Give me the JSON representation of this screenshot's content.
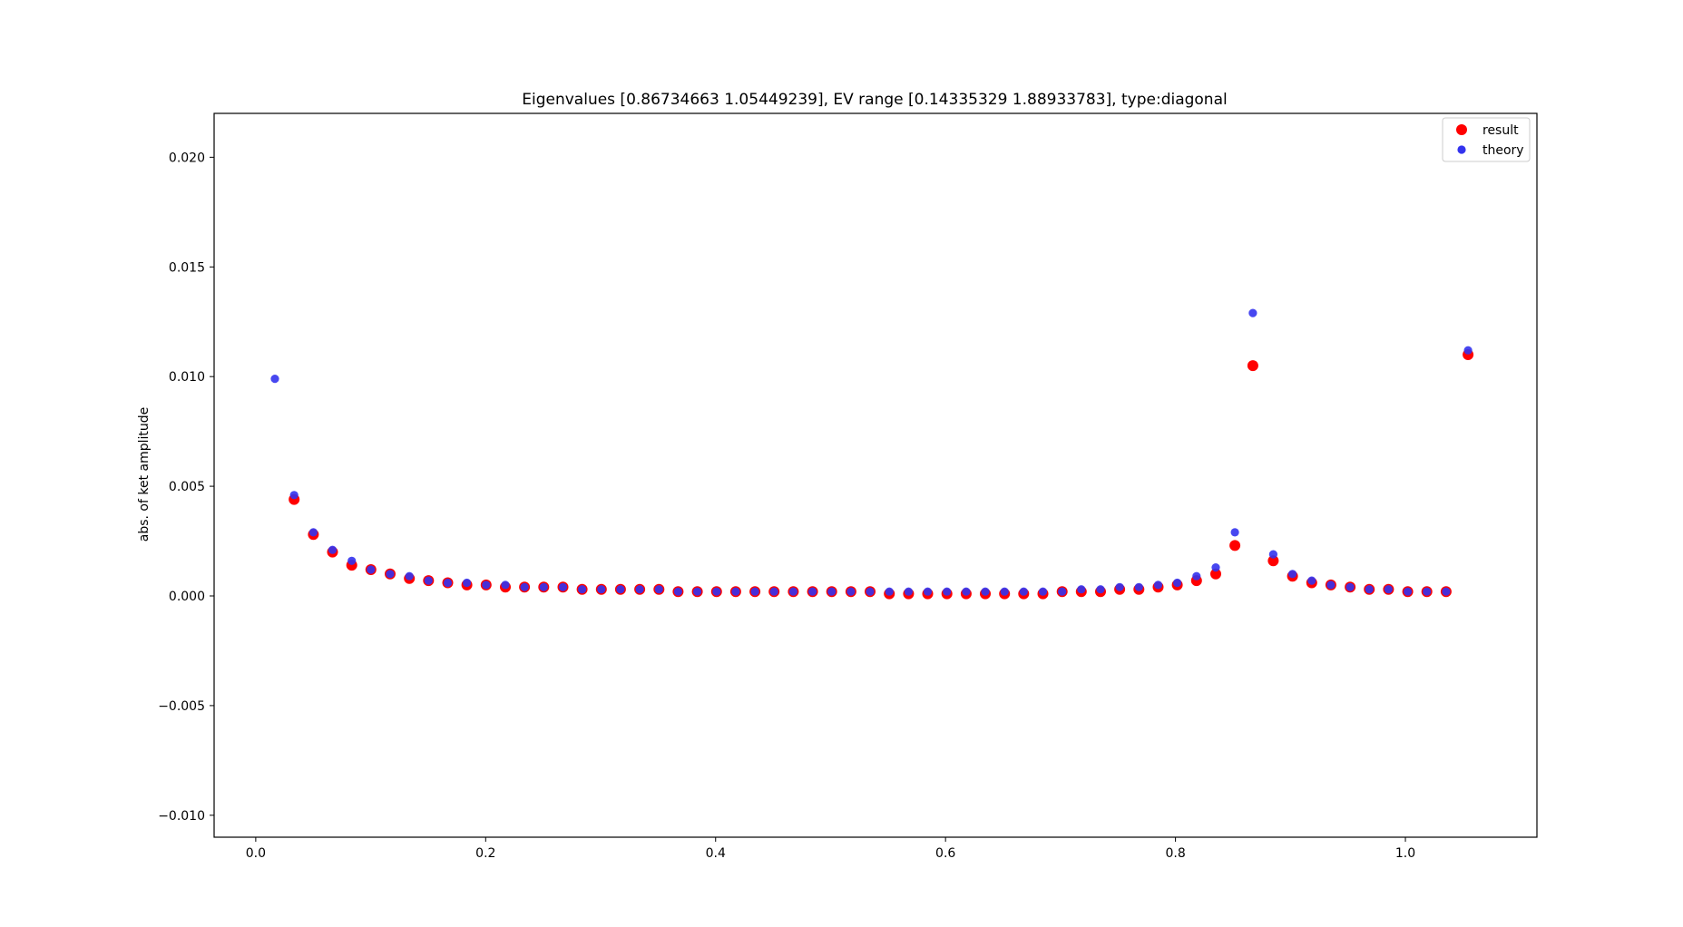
{
  "chart_data": {
    "type": "scatter",
    "title": "Eigenvalues [0.86734663 1.05449239], EV range [0.14335329 1.88933783], type:diagonal",
    "xlabel": "",
    "ylabel": "abs. of ket amplitude",
    "xlim": [
      -0.0362,
      1.1144
    ],
    "ylim": [
      -0.011,
      0.022
    ],
    "xticks": [
      0.0,
      0.2,
      0.4,
      0.6,
      0.8,
      1.0
    ],
    "xtick_labels": [
      "0.0",
      "0.2",
      "0.4",
      "0.6",
      "0.8",
      "1.0"
    ],
    "yticks": [
      -0.01,
      -0.005,
      0.0,
      0.005,
      0.01,
      0.015,
      0.02
    ],
    "ytick_labels": [
      "−0.010",
      "−0.005",
      "0.000",
      "0.005",
      "0.010",
      "0.015",
      "0.020"
    ],
    "grid": false,
    "legend_position": "top-right",
    "series": [
      {
        "name": "result",
        "color": "#ff0000",
        "marker_size": "large",
        "x": [
          0.0334,
          0.0501,
          0.0668,
          0.0835,
          0.1002,
          0.1169,
          0.1336,
          0.1503,
          0.167,
          0.1837,
          0.2004,
          0.2171,
          0.2338,
          0.2505,
          0.2672,
          0.2839,
          0.3006,
          0.3173,
          0.334,
          0.3507,
          0.3674,
          0.3841,
          0.4008,
          0.4175,
          0.4342,
          0.4509,
          0.4676,
          0.4843,
          0.501,
          0.5177,
          0.5344,
          0.5511,
          0.5678,
          0.5845,
          0.6012,
          0.6179,
          0.6346,
          0.6513,
          0.668,
          0.6847,
          0.7014,
          0.7181,
          0.7348,
          0.7515,
          0.7682,
          0.7849,
          0.8016,
          0.8183,
          0.835,
          0.8517,
          0.8673,
          0.8851,
          0.9018,
          0.9185,
          0.9352,
          0.9519,
          0.9686,
          0.9853,
          1.002,
          1.0187,
          1.0354,
          1.0545
        ],
        "y": [
          0.0044,
          0.0028,
          0.002,
          0.0014,
          0.0012,
          0.001,
          0.0008,
          0.0007,
          0.0006,
          0.0005,
          0.0005,
          0.0004,
          0.0004,
          0.0004,
          0.0004,
          0.0003,
          0.0003,
          0.0003,
          0.0003,
          0.0003,
          0.0002,
          0.0002,
          0.0002,
          0.0002,
          0.0002,
          0.0002,
          0.0002,
          0.0002,
          0.0002,
          0.0002,
          0.0002,
          0.0001,
          0.0001,
          0.0001,
          0.0001,
          0.0001,
          0.0001,
          0.0001,
          0.0001,
          0.0001,
          0.0002,
          0.0002,
          0.0002,
          0.0003,
          0.0003,
          0.0004,
          0.0005,
          0.0007,
          0.001,
          0.0023,
          0.0105,
          0.0016,
          0.0009,
          0.0006,
          0.0005,
          0.0004,
          0.0003,
          0.0003,
          0.0002,
          0.0002,
          0.0002,
          0.011
        ]
      },
      {
        "name": "theory",
        "color": "#3333ee",
        "marker_size": "small",
        "x": [
          0.0167,
          0.0334,
          0.0501,
          0.0668,
          0.0835,
          0.1002,
          0.1169,
          0.1336,
          0.1503,
          0.167,
          0.1837,
          0.2004,
          0.2171,
          0.2338,
          0.2505,
          0.2672,
          0.2839,
          0.3006,
          0.3173,
          0.334,
          0.3507,
          0.3674,
          0.3841,
          0.4008,
          0.4175,
          0.4342,
          0.4509,
          0.4676,
          0.4843,
          0.501,
          0.5177,
          0.5344,
          0.5511,
          0.5678,
          0.5845,
          0.6012,
          0.6179,
          0.6346,
          0.6513,
          0.668,
          0.6847,
          0.7014,
          0.7181,
          0.7348,
          0.7515,
          0.7682,
          0.7849,
          0.8016,
          0.8183,
          0.835,
          0.8517,
          0.8673,
          0.8851,
          0.9018,
          0.9185,
          0.9352,
          0.9519,
          0.9686,
          0.9853,
          1.002,
          1.0187,
          1.0354,
          1.0545
        ],
        "y": [
          0.0099,
          0.0046,
          0.0029,
          0.0021,
          0.0016,
          0.0012,
          0.001,
          0.0009,
          0.0007,
          0.0006,
          0.0006,
          0.0005,
          0.0005,
          0.0004,
          0.0004,
          0.0004,
          0.0003,
          0.0003,
          0.0003,
          0.0003,
          0.0003,
          0.0002,
          0.0002,
          0.0002,
          0.0002,
          0.0002,
          0.0002,
          0.0002,
          0.0002,
          0.0002,
          0.0002,
          0.0002,
          0.0002,
          0.0002,
          0.0002,
          0.0002,
          0.0002,
          0.0002,
          0.0002,
          0.0002,
          0.0002,
          0.0002,
          0.0003,
          0.0003,
          0.0004,
          0.0004,
          0.0005,
          0.0006,
          0.0009,
          0.0013,
          0.0029,
          0.0129,
          0.0019,
          0.001,
          0.0007,
          0.0005,
          0.0004,
          0.0003,
          0.0003,
          0.0002,
          0.0002,
          0.0002,
          0.0112
        ]
      }
    ]
  }
}
